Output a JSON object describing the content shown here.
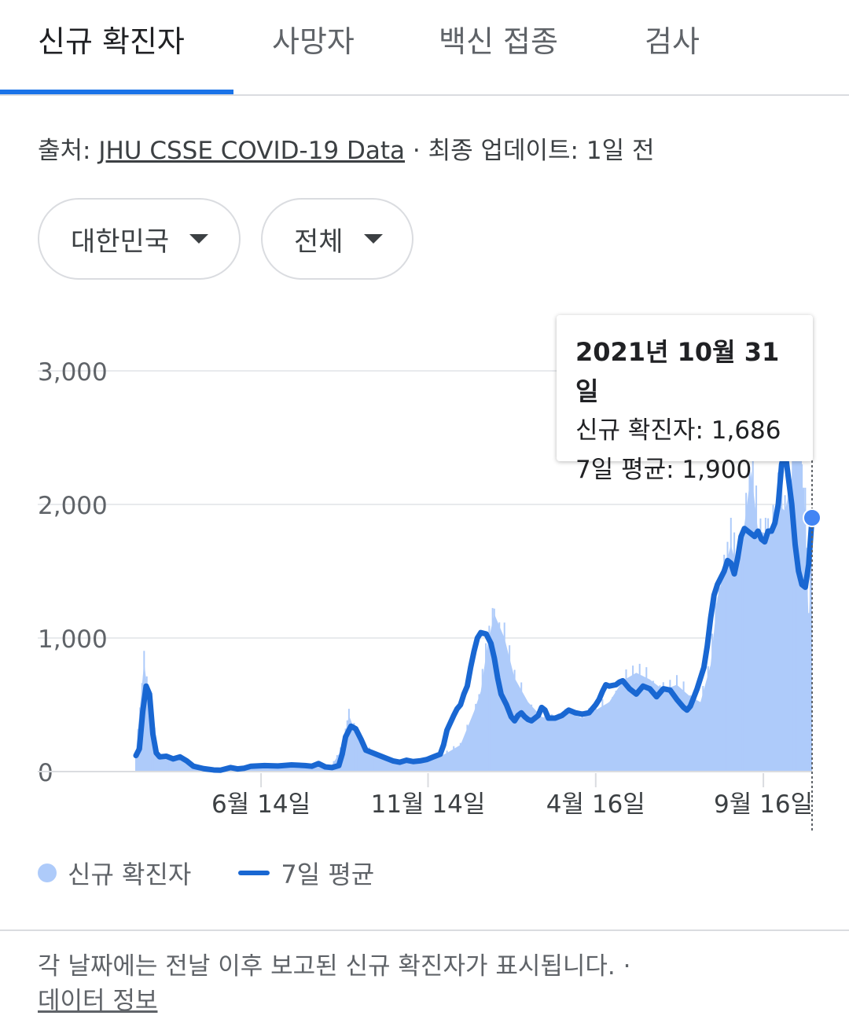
{
  "tabs": [
    {
      "label": "신규 확진자",
      "active": true
    },
    {
      "label": "사망자",
      "active": false
    },
    {
      "label": "백신 접종",
      "active": false
    },
    {
      "label": "검사",
      "active": false
    }
  ],
  "source": {
    "prefix": "출처: ",
    "link": "JHU CSSE COVID-19 Data",
    "suffix": " · 최종 업데이트: 1일 전"
  },
  "filters": {
    "region": "대한민국",
    "scope": "전체"
  },
  "tooltip": {
    "date": "2021년 10월 31일",
    "new_cases": "신규 확진자: 1,686",
    "avg": "7일 평균: 1,900"
  },
  "legend": {
    "new_cases": "신규 확진자",
    "avg": "7일 평균"
  },
  "footnote": {
    "text": "각 날짜에는 전날 이후 보고된 신규 확진자가 표시됩니다.",
    "separator": " · ",
    "link": "데이터 정보"
  },
  "colors": {
    "accent": "#1a73e8",
    "bar": "#aecbfa",
    "line": "#1967d2"
  },
  "chart_data": {
    "type": "area",
    "ylim": [
      0,
      3000
    ],
    "yticks": [
      "0",
      "1,000",
      "2,000",
      "3,000"
    ],
    "xticks": [
      "6월 14일",
      "11월 14일",
      "4월 16일",
      "9월 16일"
    ],
    "series": [
      {
        "name": "신규 확진자",
        "points": [
          [
            0.0,
            150
          ],
          [
            0.012,
            820
          ],
          [
            0.02,
            480
          ],
          [
            0.035,
            110
          ],
          [
            0.06,
            100
          ],
          [
            0.09,
            30
          ],
          [
            0.12,
            15
          ],
          [
            0.16,
            25
          ],
          [
            0.2,
            40
          ],
          [
            0.25,
            50
          ],
          [
            0.28,
            30
          ],
          [
            0.29,
            50
          ],
          [
            0.3,
            130
          ],
          [
            0.31,
            300
          ],
          [
            0.315,
            420
          ],
          [
            0.33,
            230
          ],
          [
            0.36,
            110
          ],
          [
            0.39,
            60
          ],
          [
            0.42,
            80
          ],
          [
            0.44,
            90
          ],
          [
            0.46,
            140
          ],
          [
            0.48,
            200
          ],
          [
            0.5,
            450
          ],
          [
            0.51,
            600
          ],
          [
            0.52,
            950
          ],
          [
            0.53,
            1180
          ],
          [
            0.545,
            1000
          ],
          [
            0.56,
            700
          ],
          [
            0.58,
            520
          ],
          [
            0.6,
            410
          ],
          [
            0.62,
            380
          ],
          [
            0.64,
            440
          ],
          [
            0.66,
            400
          ],
          [
            0.68,
            460
          ],
          [
            0.7,
            520
          ],
          [
            0.72,
            680
          ],
          [
            0.74,
            740
          ],
          [
            0.76,
            690
          ],
          [
            0.78,
            610
          ],
          [
            0.8,
            650
          ],
          [
            0.82,
            560
          ],
          [
            0.835,
            520
          ],
          [
            0.85,
            800
          ],
          [
            0.86,
            1300
          ],
          [
            0.87,
            1500
          ],
          [
            0.88,
            1700
          ],
          [
            0.89,
            1500
          ],
          [
            0.9,
            1850
          ],
          [
            0.91,
            2250
          ],
          [
            0.92,
            1800
          ],
          [
            0.935,
            1780
          ],
          [
            0.95,
            2000
          ],
          [
            0.96,
            1950
          ],
          [
            0.97,
            2200
          ],
          [
            0.975,
            3000
          ],
          [
            0.98,
            2800
          ],
          [
            0.985,
            2200
          ],
          [
            0.99,
            1900
          ],
          [
            0.995,
            1100
          ],
          [
            1.0,
            1686
          ]
        ]
      },
      {
        "name": "7일 평균",
        "points": [
          [
            0.0,
            120
          ],
          [
            0.005,
            170
          ],
          [
            0.01,
            450
          ],
          [
            0.015,
            640
          ],
          [
            0.02,
            580
          ],
          [
            0.025,
            280
          ],
          [
            0.03,
            140
          ],
          [
            0.035,
            110
          ],
          [
            0.045,
            115
          ],
          [
            0.055,
            95
          ],
          [
            0.065,
            110
          ],
          [
            0.075,
            80
          ],
          [
            0.085,
            40
          ],
          [
            0.1,
            22
          ],
          [
            0.115,
            12
          ],
          [
            0.125,
            10
          ],
          [
            0.14,
            30
          ],
          [
            0.15,
            20
          ],
          [
            0.16,
            25
          ],
          [
            0.17,
            40
          ],
          [
            0.19,
            45
          ],
          [
            0.21,
            42
          ],
          [
            0.23,
            50
          ],
          [
            0.25,
            45
          ],
          [
            0.26,
            40
          ],
          [
            0.27,
            60
          ],
          [
            0.28,
            35
          ],
          [
            0.29,
            30
          ],
          [
            0.3,
            45
          ],
          [
            0.305,
            130
          ],
          [
            0.31,
            260
          ],
          [
            0.318,
            340
          ],
          [
            0.325,
            320
          ],
          [
            0.333,
            240
          ],
          [
            0.34,
            160
          ],
          [
            0.355,
            130
          ],
          [
            0.37,
            100
          ],
          [
            0.38,
            80
          ],
          [
            0.39,
            70
          ],
          [
            0.4,
            85
          ],
          [
            0.41,
            75
          ],
          [
            0.42,
            80
          ],
          [
            0.43,
            90
          ],
          [
            0.44,
            110
          ],
          [
            0.45,
            130
          ],
          [
            0.455,
            200
          ],
          [
            0.46,
            310
          ],
          [
            0.47,
            420
          ],
          [
            0.475,
            470
          ],
          [
            0.48,
            500
          ],
          [
            0.485,
            580
          ],
          [
            0.49,
            640
          ],
          [
            0.495,
            780
          ],
          [
            0.5,
            900
          ],
          [
            0.505,
            1000
          ],
          [
            0.51,
            1040
          ],
          [
            0.518,
            1030
          ],
          [
            0.525,
            960
          ],
          [
            0.53,
            850
          ],
          [
            0.535,
            700
          ],
          [
            0.54,
            580
          ],
          [
            0.548,
            500
          ],
          [
            0.555,
            410
          ],
          [
            0.56,
            380
          ],
          [
            0.565,
            420
          ],
          [
            0.57,
            440
          ],
          [
            0.575,
            410
          ],
          [
            0.58,
            390
          ],
          [
            0.585,
            380
          ],
          [
            0.59,
            400
          ],
          [
            0.595,
            420
          ],
          [
            0.6,
            480
          ],
          [
            0.605,
            460
          ],
          [
            0.61,
            400
          ],
          [
            0.62,
            400
          ],
          [
            0.63,
            420
          ],
          [
            0.64,
            460
          ],
          [
            0.65,
            440
          ],
          [
            0.66,
            430
          ],
          [
            0.67,
            440
          ],
          [
            0.68,
            500
          ],
          [
            0.685,
            540
          ],
          [
            0.69,
            600
          ],
          [
            0.695,
            650
          ],
          [
            0.7,
            640
          ],
          [
            0.71,
            650
          ],
          [
            0.715,
            670
          ],
          [
            0.72,
            680
          ],
          [
            0.73,
            620
          ],
          [
            0.74,
            580
          ],
          [
            0.75,
            640
          ],
          [
            0.76,
            620
          ],
          [
            0.77,
            560
          ],
          [
            0.78,
            620
          ],
          [
            0.79,
            610
          ],
          [
            0.8,
            540
          ],
          [
            0.81,
            480
          ],
          [
            0.815,
            460
          ],
          [
            0.82,
            490
          ],
          [
            0.83,
            620
          ],
          [
            0.84,
            780
          ],
          [
            0.845,
            940
          ],
          [
            0.85,
            1150
          ],
          [
            0.855,
            1320
          ],
          [
            0.86,
            1400
          ],
          [
            0.87,
            1500
          ],
          [
            0.875,
            1580
          ],
          [
            0.88,
            1560
          ],
          [
            0.885,
            1480
          ],
          [
            0.89,
            1600
          ],
          [
            0.895,
            1760
          ],
          [
            0.9,
            1820
          ],
          [
            0.905,
            1800
          ],
          [
            0.91,
            1780
          ],
          [
            0.915,
            1760
          ],
          [
            0.92,
            1800
          ],
          [
            0.925,
            1740
          ],
          [
            0.93,
            1720
          ],
          [
            0.935,
            1800
          ],
          [
            0.94,
            1800
          ],
          [
            0.945,
            1860
          ],
          [
            0.95,
            2000
          ],
          [
            0.955,
            2300
          ],
          [
            0.96,
            2400
          ],
          [
            0.965,
            2200
          ],
          [
            0.97,
            2000
          ],
          [
            0.975,
            1700
          ],
          [
            0.98,
            1500
          ],
          [
            0.985,
            1400
          ],
          [
            0.99,
            1380
          ],
          [
            0.995,
            1550
          ],
          [
            1.0,
            1900
          ]
        ]
      }
    ]
  }
}
